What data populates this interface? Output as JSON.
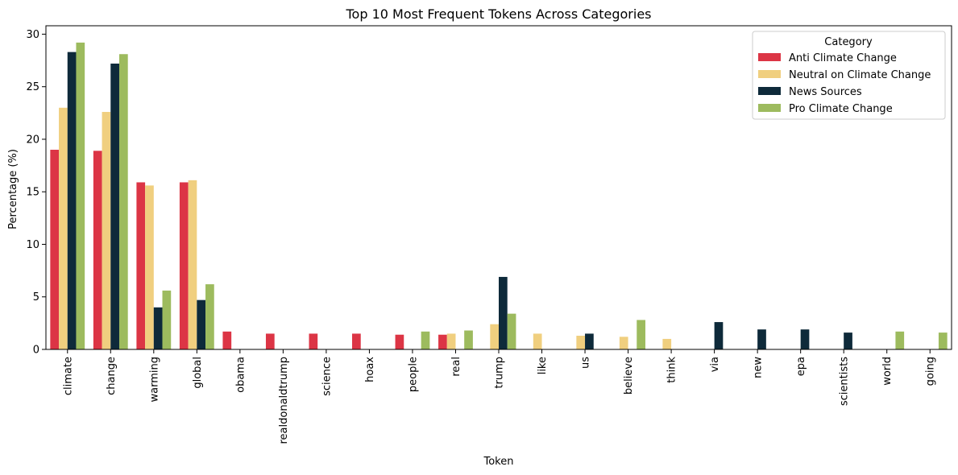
{
  "chart_data": {
    "type": "bar",
    "title": "Top 10 Most Frequent Tokens Across Categories",
    "xlabel": "Token",
    "ylabel": "Percentage (%)",
    "ylim": [
      0,
      30.8
    ],
    "yticks": [
      0,
      5,
      10,
      15,
      20,
      25,
      30
    ],
    "grid": false,
    "legend": {
      "title": "Category",
      "placement": "top-right"
    },
    "categories": [
      "climate",
      "change",
      "warming",
      "global",
      "obama",
      "realdonaldtrump",
      "science",
      "hoax",
      "people",
      "real",
      "trump",
      "like",
      "us",
      "believe",
      "think",
      "via",
      "new",
      "epa",
      "scientists",
      "world",
      "going"
    ],
    "series": [
      {
        "name": "Anti Climate Change",
        "color": "#dc3545",
        "values": [
          19.0,
          18.9,
          15.9,
          15.9,
          1.7,
          1.5,
          1.5,
          1.5,
          1.4,
          1.4,
          null,
          null,
          null,
          null,
          null,
          null,
          null,
          null,
          null,
          null,
          null
        ]
      },
      {
        "name": "Neutral on Climate Change",
        "color": "#f0cf7f",
        "values": [
          23.0,
          22.6,
          15.6,
          16.1,
          null,
          null,
          null,
          null,
          null,
          1.5,
          2.4,
          1.5,
          1.3,
          1.2,
          1.0,
          null,
          null,
          null,
          null,
          null,
          null
        ]
      },
      {
        "name": "News Sources",
        "color": "#0e2a3a",
        "values": [
          28.3,
          27.2,
          4.0,
          4.7,
          null,
          null,
          null,
          null,
          null,
          null,
          6.9,
          null,
          1.5,
          null,
          null,
          2.6,
          1.9,
          1.9,
          1.6,
          null,
          null
        ]
      },
      {
        "name": "Pro Climate Change",
        "color": "#9dbb5e",
        "values": [
          29.2,
          28.1,
          5.6,
          6.2,
          null,
          null,
          null,
          null,
          1.7,
          1.8,
          3.4,
          null,
          null,
          2.8,
          null,
          null,
          null,
          null,
          null,
          1.7,
          1.6
        ]
      }
    ]
  }
}
